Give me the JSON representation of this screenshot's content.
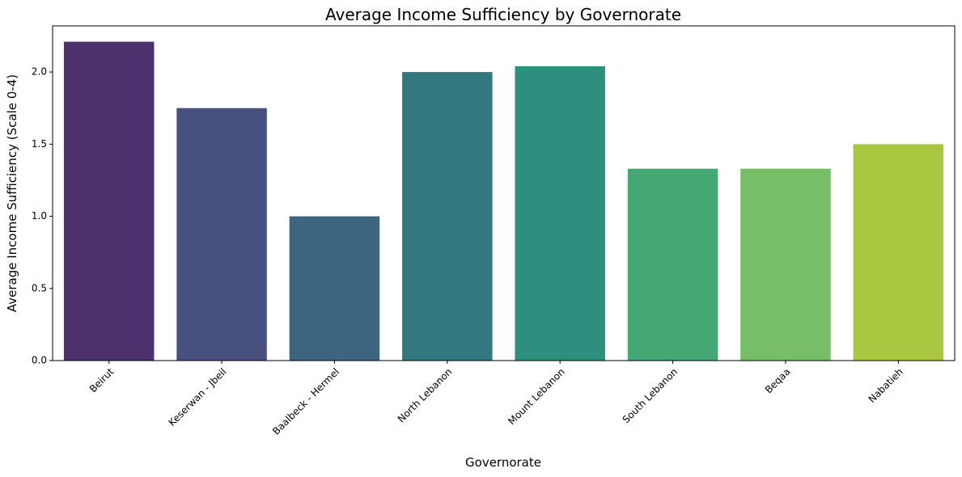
{
  "chart_data": {
    "type": "bar",
    "title": "Average Income Sufficiency by Governorate",
    "xlabel": "Governorate",
    "ylabel": "Average Income Sufficiency (Scale 0-4)",
    "categories": [
      "Beirut",
      "Keserwan - Jbeil",
      "Baalbeck - Hermel",
      "North Lebanon",
      "Mount Lebanon",
      "South Lebanon",
      "Beqaa",
      "Nabatieh"
    ],
    "values": [
      2.21,
      1.75,
      1.0,
      2.0,
      2.04,
      1.33,
      1.33,
      1.5
    ],
    "colors": [
      "#4c316d",
      "#47507f",
      "#3d6580",
      "#32787f",
      "#2e8f7e",
      "#45a874",
      "#77bf67",
      "#a9c740"
    ],
    "ylim": [
      0,
      2.32
    ],
    "yticks": [
      0.0,
      0.5,
      1.0,
      1.5,
      2.0
    ],
    "ytick_labels": [
      "0.0",
      "0.5",
      "1.0",
      "1.5",
      "2.0"
    ],
    "x_tick_rotation_deg": 45,
    "grid": false,
    "legend": "none"
  }
}
